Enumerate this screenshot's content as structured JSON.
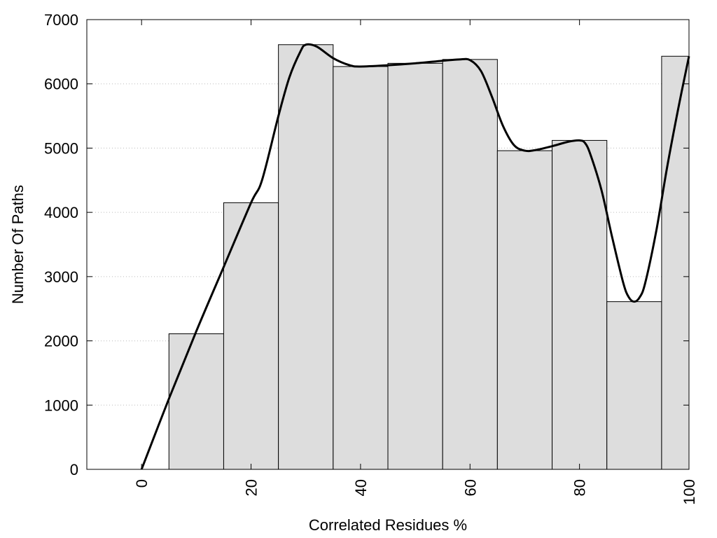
{
  "chart_data": {
    "type": "bar",
    "xlabel": "Correlated Residues %",
    "ylabel": "Number Of Paths",
    "xlim": [
      -10,
      100
    ],
    "ylim": [
      0,
      7000
    ],
    "x_ticks": [
      0,
      20,
      40,
      60,
      80,
      100
    ],
    "y_ticks": [
      0,
      1000,
      2000,
      3000,
      4000,
      5000,
      6000,
      7000
    ],
    "grid": "horizontal-dotted",
    "bar_width": 10,
    "bars": [
      {
        "x": 10,
        "value": 2110
      },
      {
        "x": 20,
        "value": 4150
      },
      {
        "x": 30,
        "value": 6610
      },
      {
        "x": 40,
        "value": 6270
      },
      {
        "x": 50,
        "value": 6320
      },
      {
        "x": 60,
        "value": 6380
      },
      {
        "x": 70,
        "value": 4960
      },
      {
        "x": 80,
        "value": 5120
      },
      {
        "x": 90,
        "value": 2610
      },
      {
        "x": 100,
        "value": 6430
      }
    ],
    "curve": {
      "x": [
        0,
        5,
        10,
        15,
        20,
        22,
        25,
        27,
        29,
        30,
        32,
        35,
        38,
        40,
        45,
        50,
        55,
        58,
        60,
        62,
        64,
        66,
        68,
        70,
        72,
        75,
        78,
        80,
        81,
        82,
        84,
        86,
        88,
        89,
        90,
        91,
        92,
        94,
        96,
        98,
        100
      ],
      "y": [
        0,
        1100,
        2150,
        3150,
        4150,
        4500,
        5500,
        6100,
        6500,
        6610,
        6580,
        6400,
        6290,
        6270,
        6290,
        6320,
        6360,
        6380,
        6370,
        6200,
        5800,
        5350,
        5050,
        4960,
        4970,
        5030,
        5100,
        5120,
        5080,
        4900,
        4350,
        3600,
        2900,
        2680,
        2610,
        2680,
        2900,
        3700,
        4700,
        5600,
        6430
      ]
    },
    "colors": {
      "bar_fill": "#dddddd",
      "bar_stroke": "#000000",
      "curve": "#000000",
      "grid": "#bbbbbb"
    }
  }
}
